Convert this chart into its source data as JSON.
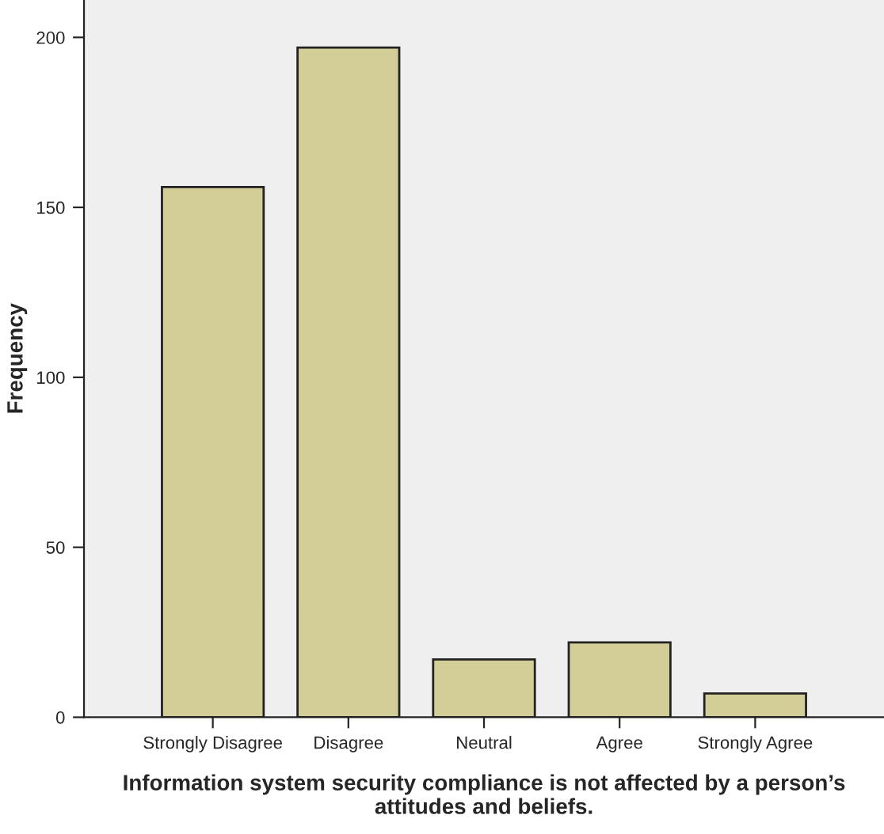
{
  "chart_data": {
    "type": "bar",
    "xlabel": "Information system security compliance is not affected by a person’s attitudes and beliefs.",
    "ylabel": "Frequency",
    "categories": [
      "Strongly Disagree",
      "Disagree",
      "Neutral",
      "Agree",
      "Strongly Agree"
    ],
    "values": [
      156,
      197,
      17,
      22,
      7
    ],
    "color": "#d3ce97",
    "ylim": [
      0,
      211
    ],
    "yticks": [
      0,
      50,
      100,
      150,
      200
    ],
    "grid": false
  }
}
